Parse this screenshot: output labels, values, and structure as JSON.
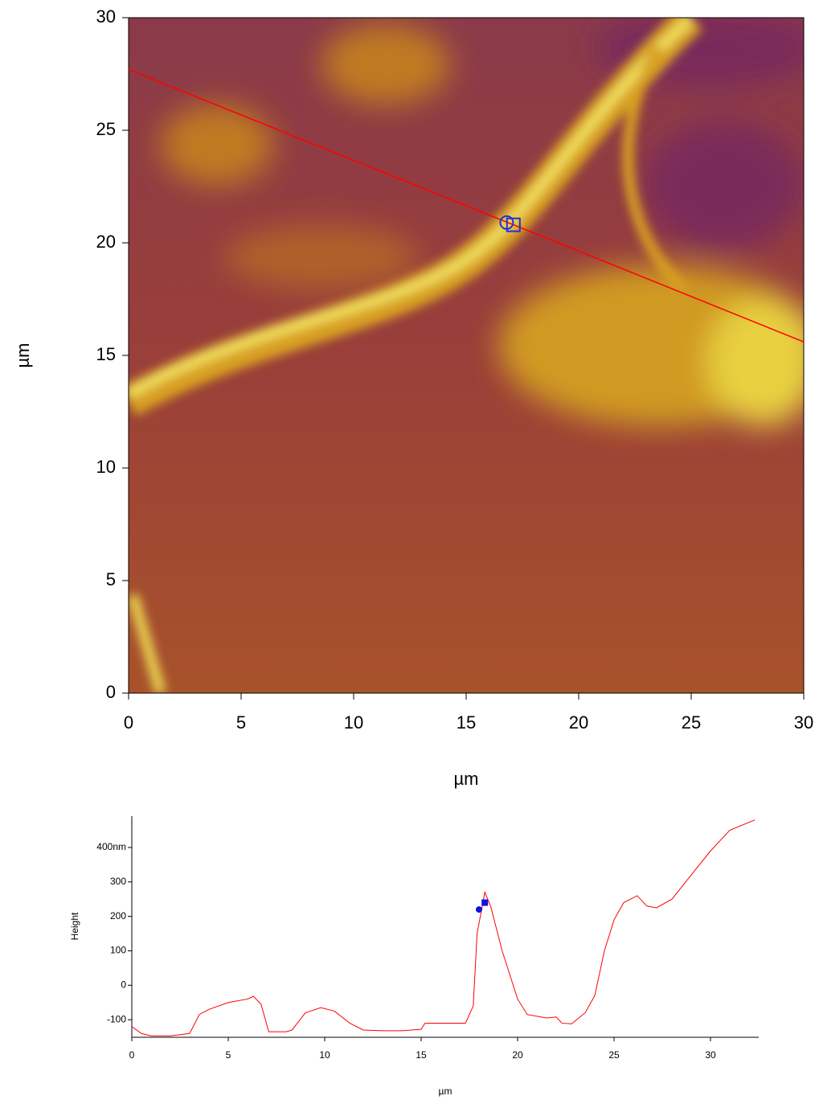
{
  "chart_data": [
    {
      "type": "heatmap",
      "xlabel": "µm",
      "ylabel": "µm",
      "xlim": [
        0,
        30
      ],
      "ylim": [
        0,
        30
      ],
      "xticks": [
        0,
        5,
        10,
        15,
        20,
        25,
        30
      ],
      "yticks": [
        0,
        5,
        10,
        15,
        20,
        25,
        30
      ],
      "series": [
        {
          "color": "#ff0000",
          "x": [
            0,
            30
          ],
          "values": [
            27.7,
            15.6
          ]
        }
      ],
      "markers": [
        {
          "x": 16.8,
          "y": 20.9,
          "shape": "circle",
          "color": "#2030e0"
        },
        {
          "x": 17.1,
          "y": 20.8,
          "shape": "square",
          "color": "#2030e0"
        }
      ]
    },
    {
      "type": "line",
      "xlabel": "µm",
      "ylabel": "Height",
      "xlim": [
        0,
        32.5
      ],
      "ylim": [
        -151,
        491
      ],
      "xticks": [
        0,
        5,
        10,
        15,
        20,
        25,
        30
      ],
      "yticks": [
        -100,
        0,
        100,
        200,
        300,
        {
          "value": 400,
          "label": "400nm"
        }
      ],
      "series": [
        {
          "color": "#ff0000",
          "x": [
            0,
            0.5,
            1,
            2,
            3,
            3.5,
            4,
            5,
            6,
            6.3,
            6.7,
            7.1,
            8,
            8.3,
            9,
            9.8,
            10.5,
            11.3,
            12,
            13,
            14,
            15,
            15.2,
            16,
            17.3,
            17.7,
            17.9,
            18.3,
            18.6,
            19.2,
            20,
            20.5,
            21.5,
            22,
            22.3,
            22.8,
            23.5,
            24,
            24.5,
            25,
            25.5,
            26.2,
            26.7,
            27.2,
            28,
            29,
            30,
            31,
            32.3
          ],
          "values": [
            -120,
            -140,
            -147,
            -147,
            -140,
            -85,
            -70,
            -50,
            -40,
            -32,
            -55,
            -135,
            -135,
            -130,
            -80,
            -65,
            -75,
            -110,
            -130,
            -132,
            -132,
            -128,
            -110,
            -110,
            -110,
            -60,
            150,
            270,
            230,
            100,
            -40,
            -85,
            -95,
            -92,
            -110,
            -112,
            -80,
            -30,
            100,
            190,
            240,
            260,
            230,
            225,
            250,
            320,
            390,
            450,
            480
          ]
        }
      ],
      "markers": [
        {
          "x": 18.0,
          "y": 220,
          "shape": "circle",
          "color": "#1010e0"
        },
        {
          "x": 18.3,
          "y": 240,
          "shape": "square",
          "color": "#1010e0"
        }
      ]
    }
  ]
}
